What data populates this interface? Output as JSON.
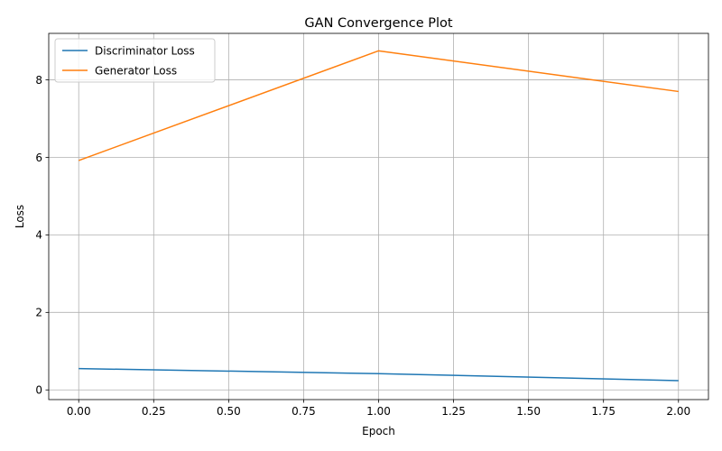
{
  "chart_data": {
    "type": "line",
    "title": "GAN Convergence Plot",
    "xlabel": "Epoch",
    "ylabel": "Loss",
    "x": [
      0,
      1,
      2
    ],
    "xlim": [
      -0.1,
      2.1
    ],
    "ylim": [
      -0.25,
      9.2
    ],
    "xticks": [
      "0.00",
      "0.25",
      "0.50",
      "0.75",
      "1.00",
      "1.25",
      "1.50",
      "1.75",
      "2.00"
    ],
    "yticks": [
      "0",
      "2",
      "4",
      "6",
      "8"
    ],
    "grid": true,
    "legend_position": "upper-left",
    "series": [
      {
        "name": "Discriminator Loss",
        "color": "#1f77b4",
        "values": [
          0.55,
          0.42,
          0.24
        ]
      },
      {
        "name": "Generator Loss",
        "color": "#ff7f0e",
        "values": [
          5.92,
          8.75,
          7.7
        ]
      }
    ]
  }
}
